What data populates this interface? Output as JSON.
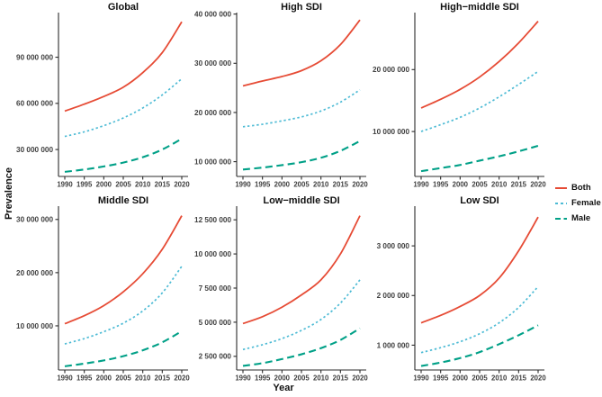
{
  "figure": {
    "ylabel": "Prevalence",
    "xlabel": "Year",
    "background": "#ffffff",
    "axis_color": "#2b2b2b",
    "tick_label_color": "#404040",
    "title_color": "#111111"
  },
  "palette": {
    "Both": {
      "color": "#E64B35",
      "dash": "",
      "width": 1.8
    },
    "Female": {
      "color": "#4DBBD5",
      "dash": "2.4 2.7",
      "width": 1.7
    },
    "Male": {
      "color": "#00A087",
      "dash": "8 4.5",
      "width": 2.1
    }
  },
  "legend": {
    "position": "right",
    "items": [
      {
        "label": "Both",
        "color": "#E64B35",
        "dash": ""
      },
      {
        "label": "Female",
        "color": "#4DBBD5",
        "dash": "3 3"
      },
      {
        "label": "Male",
        "color": "#00A087",
        "dash": "6 3.5"
      }
    ]
  },
  "chart_data": [
    {
      "type": "line",
      "title": "Global",
      "grid": false,
      "x": [
        1990,
        1995,
        2000,
        2005,
        2010,
        2015,
        2020
      ],
      "series": [
        {
          "name": "Both",
          "values": [
            55000000,
            59500000,
            64500000,
            70500000,
            80000000,
            93000000,
            113000000
          ]
        },
        {
          "name": "Female",
          "values": [
            38500000,
            41500000,
            45500000,
            50500000,
            57000000,
            65500000,
            76000000
          ]
        },
        {
          "name": "Male",
          "values": [
            15500000,
            17000000,
            19000000,
            21500000,
            25000000,
            30000000,
            37000000
          ]
        }
      ],
      "ylim": [
        12500000,
        119000000
      ],
      "yticks": [
        30000000,
        60000000,
        90000000
      ]
    },
    {
      "type": "line",
      "title": "High SDI",
      "grid": false,
      "x": [
        1990,
        1995,
        2000,
        2005,
        2010,
        2015,
        2020
      ],
      "series": [
        {
          "name": "Both",
          "values": [
            25400000,
            26400000,
            27300000,
            28500000,
            30500000,
            33800000,
            38800000
          ]
        },
        {
          "name": "Female",
          "values": [
            17100000,
            17600000,
            18300000,
            19100000,
            20300000,
            22100000,
            24600000
          ]
        },
        {
          "name": "Male",
          "values": [
            8400000,
            8800000,
            9300000,
            9900000,
            10800000,
            12200000,
            14200000
          ]
        }
      ],
      "ylim": [
        7000000,
        40300000
      ],
      "yticks": [
        10000000,
        20000000,
        30000000,
        40000000
      ]
    },
    {
      "type": "line",
      "title": "High−middle SDI",
      "grid": false,
      "x": [
        1990,
        1995,
        2000,
        2005,
        2010,
        2015,
        2020
      ],
      "series": [
        {
          "name": "Both",
          "values": [
            13800000,
            15200000,
            16800000,
            18800000,
            21300000,
            24300000,
            27800000
          ]
        },
        {
          "name": "Female",
          "values": [
            10000000,
            11100000,
            12300000,
            13800000,
            15600000,
            17600000,
            19700000
          ]
        },
        {
          "name": "Male",
          "values": [
            3600000,
            4100000,
            4600000,
            5300000,
            6000000,
            6800000,
            7700000
          ]
        }
      ],
      "ylim": [
        2750000,
        29200000
      ],
      "yticks": [
        10000000,
        20000000
      ]
    },
    {
      "type": "line",
      "title": "Middle SDI",
      "grid": false,
      "x": [
        1990,
        1995,
        2000,
        2005,
        2010,
        2015,
        2020
      ],
      "series": [
        {
          "name": "Both",
          "values": [
            10400000,
            11900000,
            13800000,
            16400000,
            19800000,
            24400000,
            30700000
          ]
        },
        {
          "name": "Female",
          "values": [
            6600000,
            7600000,
            8900000,
            10500000,
            12800000,
            16200000,
            21200000
          ]
        },
        {
          "name": "Male",
          "values": [
            2400000,
            2900000,
            3500000,
            4300000,
            5400000,
            6900000,
            9000000
          ]
        }
      ],
      "ylim": [
        1700000,
        32500000
      ],
      "yticks": [
        10000000,
        20000000,
        30000000
      ]
    },
    {
      "type": "line",
      "title": "Low−middle SDI",
      "grid": false,
      "x": [
        1990,
        1995,
        2000,
        2005,
        2010,
        2015,
        2020
      ],
      "series": [
        {
          "name": "Both",
          "values": [
            4900000,
            5400000,
            6100000,
            7000000,
            8100000,
            10000000,
            12800000
          ]
        },
        {
          "name": "Female",
          "values": [
            3000000,
            3350000,
            3800000,
            4400000,
            5200000,
            6400000,
            8100000
          ]
        },
        {
          "name": "Male",
          "values": [
            1800000,
            2000000,
            2300000,
            2650000,
            3100000,
            3700000,
            4550000
          ]
        }
      ],
      "ylim": [
        1500000,
        13500000
      ],
      "yticks": [
        2500000,
        5000000,
        7500000,
        10000000,
        12500000
      ]
    },
    {
      "type": "line",
      "title": "Low SDI",
      "grid": false,
      "x": [
        1990,
        1995,
        2000,
        2005,
        2010,
        2015,
        2020
      ],
      "series": [
        {
          "name": "Both",
          "values": [
            1450000,
            1600000,
            1780000,
            2000000,
            2350000,
            2900000,
            3580000
          ]
        },
        {
          "name": "Female",
          "values": [
            850000,
            950000,
            1070000,
            1230000,
            1450000,
            1760000,
            2180000
          ]
        },
        {
          "name": "Male",
          "values": [
            580000,
            650000,
            740000,
            860000,
            1020000,
            1200000,
            1400000
          ]
        }
      ],
      "ylim": [
        500000,
        3800000
      ],
      "yticks": [
        1000000,
        2000000,
        3000000
      ]
    }
  ]
}
